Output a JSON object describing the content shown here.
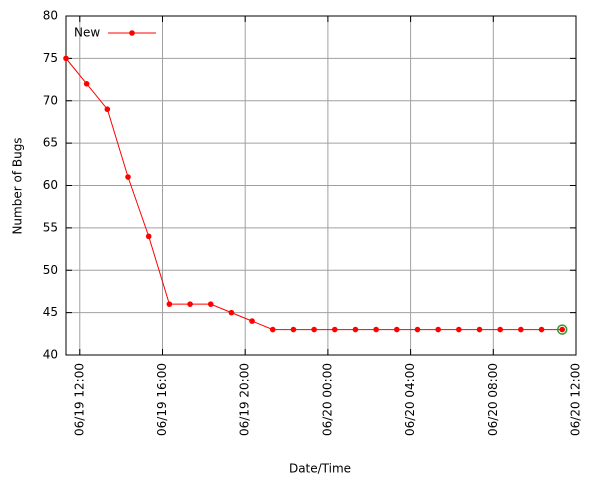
{
  "chart_data": {
    "type": "line",
    "x_label": "Date/Time",
    "y_label": "Number of Bugs",
    "x": [
      "06/19 11:20",
      "06/19 12:20",
      "06/19 13:20",
      "06/19 14:20",
      "06/19 15:20",
      "06/19 16:20",
      "06/19 17:20",
      "06/19 18:20",
      "06/19 19:20",
      "06/19 20:20",
      "06/19 21:20",
      "06/19 22:20",
      "06/19 23:20",
      "06/20 00:20",
      "06/20 01:20",
      "06/20 02:20",
      "06/20 03:20",
      "06/20 04:20",
      "06/20 05:20",
      "06/20 06:20",
      "06/20 07:20",
      "06/20 08:20",
      "06/20 09:20",
      "06/20 10:20",
      "06/20 11:20"
    ],
    "series": [
      {
        "name": "New",
        "color": "#ff0000",
        "values": [
          75,
          72,
          69,
          61,
          54,
          46,
          46,
          46,
          45,
          44,
          43,
          43,
          43,
          43,
          43,
          43,
          43,
          43,
          43,
          43,
          43,
          43,
          43,
          43,
          43
        ]
      }
    ],
    "xlim": [
      "06/19 11:20",
      "06/20 12:00"
    ],
    "xticks": [
      "06/19 12:00",
      "06/19 16:00",
      "06/19 20:00",
      "06/20 00:00",
      "06/20 04:00",
      "06/20 08:00",
      "06/20 12:00"
    ],
    "ylim": [
      40,
      80
    ],
    "yticks": [
      40,
      45,
      50,
      55,
      60,
      65,
      70,
      75,
      80
    ],
    "grid": true,
    "legend": "upper left"
  }
}
